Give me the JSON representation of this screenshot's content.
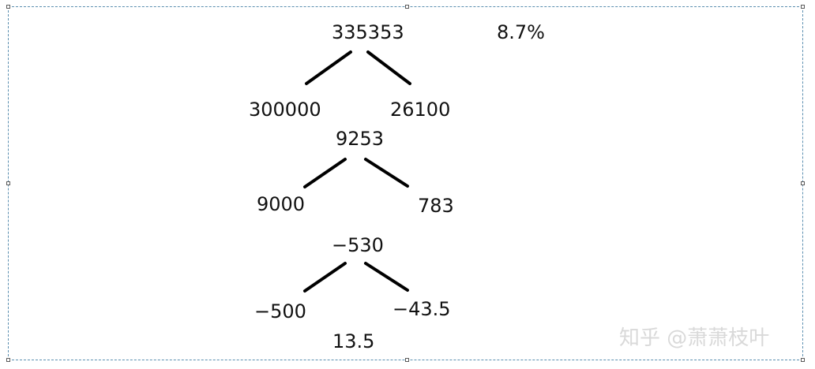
{
  "tree1": {
    "root": "335353",
    "left": "300000",
    "right": "26100",
    "rate": "8.7%"
  },
  "tree2": {
    "root": "9253",
    "left": "9000",
    "right": "783"
  },
  "tree3": {
    "root": "−530",
    "left": "−500",
    "right": "−43.5"
  },
  "bottom_value": "13.5",
  "watermark": "知乎 @萧萧枝叶"
}
